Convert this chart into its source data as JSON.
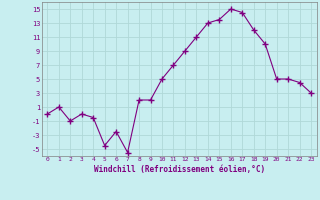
{
  "x": [
    0,
    1,
    2,
    3,
    4,
    5,
    6,
    7,
    8,
    9,
    10,
    11,
    12,
    13,
    14,
    15,
    16,
    17,
    18,
    19,
    20,
    21,
    22,
    23
  ],
  "y": [
    0,
    1,
    -1,
    0,
    -0.5,
    -4.5,
    -2.5,
    -5.5,
    2,
    2,
    5,
    7,
    9,
    11,
    13,
    13.5,
    15,
    14.5,
    12,
    10,
    5,
    5,
    4.5,
    3
  ],
  "line_color": "#800080",
  "marker": "D",
  "marker_size": 2.0,
  "background_color": "#c8eef0",
  "grid_color": "#b0d8d8",
  "xlabel": "Windchill (Refroidissement éolien,°C)",
  "xlabel_color": "#800080",
  "tick_color": "#800080",
  "ylim": [
    -6,
    16
  ],
  "xlim": [
    -0.5,
    23.5
  ],
  "yticks": [
    -5,
    -3,
    -1,
    1,
    3,
    5,
    7,
    9,
    11,
    13,
    15
  ],
  "xticks": [
    0,
    1,
    2,
    3,
    4,
    5,
    6,
    7,
    8,
    9,
    10,
    11,
    12,
    13,
    14,
    15,
    16,
    17,
    18,
    19,
    20,
    21,
    22,
    23
  ]
}
